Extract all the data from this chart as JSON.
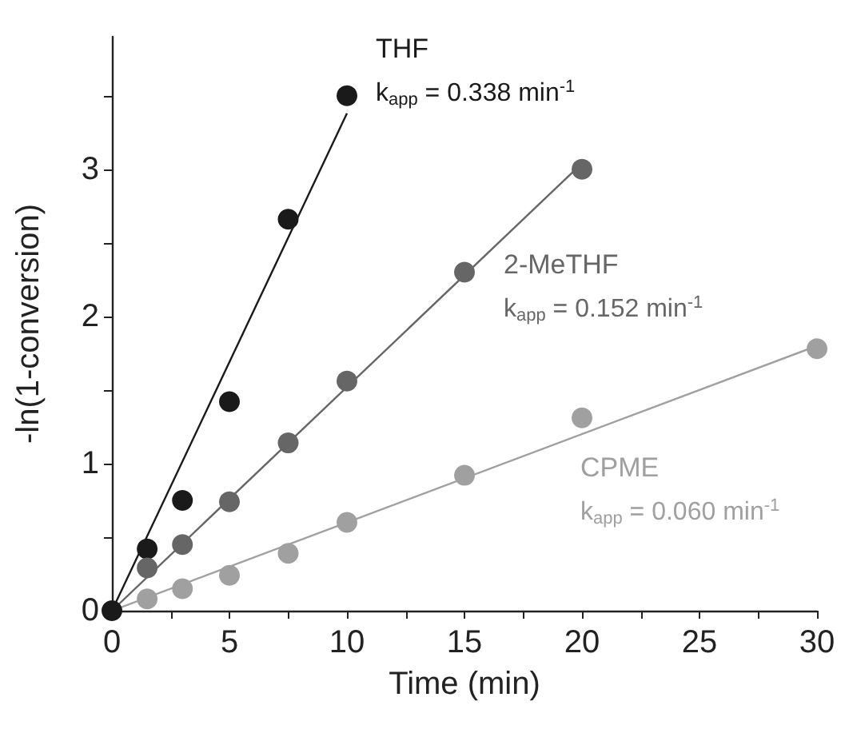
{
  "chart_data": {
    "type": "scatter",
    "xlabel": "Time (min)",
    "ylabel": "-ln(1-conversion)",
    "xlim": [
      0,
      30
    ],
    "xticks": [
      0,
      {
        "value": 2.5,
        "label": null
      },
      5,
      {
        "value": 7.5,
        "label": null
      },
      10,
      {
        "value": 12.5,
        "label": null
      },
      15,
      {
        "value": 17.5,
        "label": null
      },
      20,
      {
        "value": 22.5,
        "label": null
      },
      25,
      {
        "value": 27.5,
        "label": null
      },
      30
    ],
    "ylim": [
      0,
      3.9
    ],
    "yticks": [
      0,
      {
        "value": 0.5,
        "label": null
      },
      1,
      {
        "value": 1.5,
        "label": null
      },
      2,
      {
        "value": 2.5,
        "label": null
      },
      3,
      {
        "value": 3.5,
        "label": null
      }
    ],
    "grid": false,
    "legend": false,
    "marker": "circle",
    "series": [
      {
        "name": "THF",
        "color": "#1a1a1a",
        "x": [
          0,
          1.5,
          3,
          5,
          7.5,
          10
        ],
        "values": [
          0,
          0.42,
          0.75,
          1.42,
          2.66,
          3.5
        ]
      },
      {
        "name": "2-MeTHF",
        "color": "#666666",
        "x": [
          1.5,
          3,
          5,
          7.5,
          10,
          15,
          20
        ],
        "values": [
          0.29,
          0.45,
          0.74,
          1.14,
          1.56,
          2.3,
          3.0
        ]
      },
      {
        "name": "CPME",
        "color": "#a0a0a0",
        "x": [
          1.5,
          3,
          5,
          7.5,
          10,
          15,
          20,
          30
        ],
        "values": [
          0.08,
          0.15,
          0.24,
          0.39,
          0.6,
          0.92,
          1.31,
          1.78
        ]
      },
      {
        "type": "line",
        "color": "#1a1a1a",
        "marker": "none",
        "line_style": "solid",
        "x": [
          0,
          10
        ],
        "values": [
          0,
          3.38
        ]
      },
      {
        "type": "line",
        "color": "#666666",
        "marker": "none",
        "line_style": "solid",
        "x": [
          0,
          20
        ],
        "values": [
          0,
          3.04
        ]
      },
      {
        "type": "line",
        "color": "#a0a0a0",
        "marker": "none",
        "line_style": "solid",
        "x": [
          0,
          30
        ],
        "values": [
          0,
          1.8
        ]
      }
    ],
    "annotations": [
      "k$_{app}$ = 0.338 min$^{-1}$",
      "k$_{app}$ = 0.152 min$^{-1}$",
      "k$_{app}$ = 0.060 min$^{-1}$"
    ]
  }
}
